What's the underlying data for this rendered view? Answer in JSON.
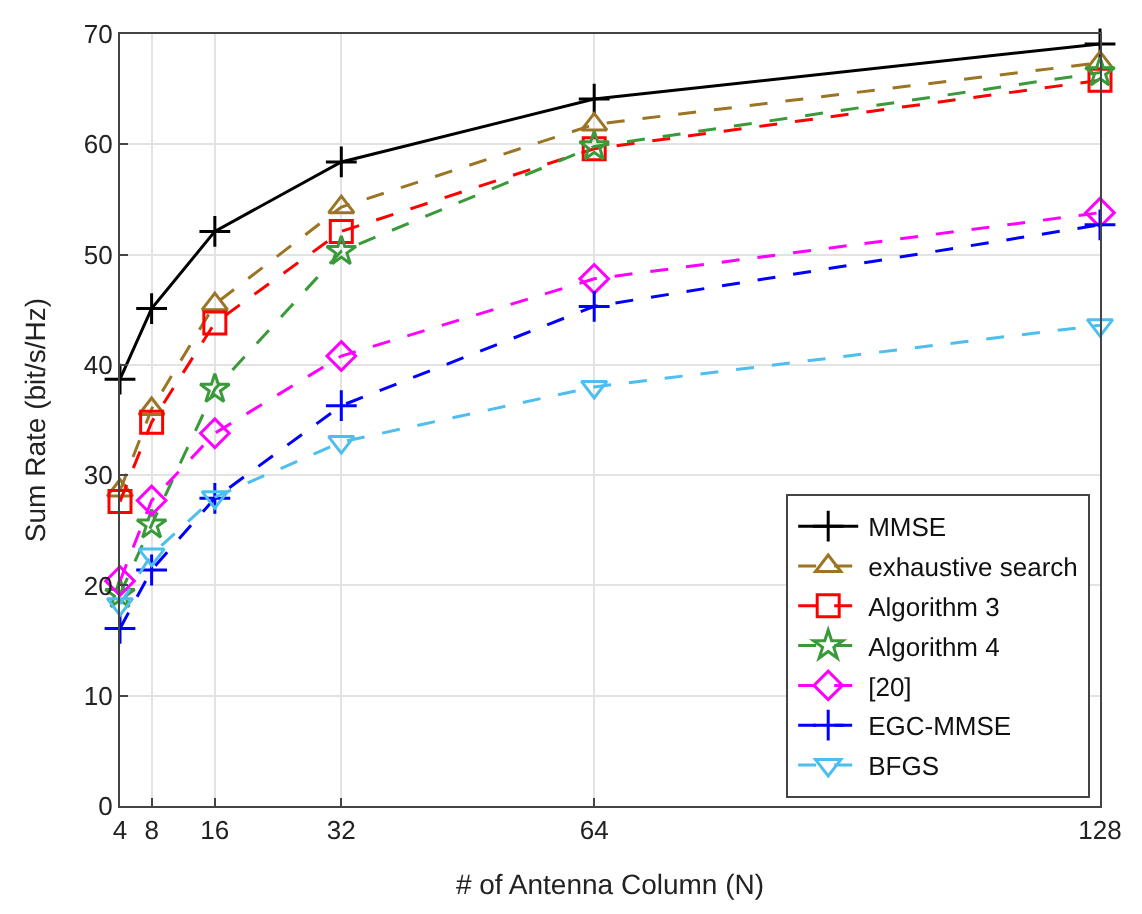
{
  "chart_data": {
    "type": "line",
    "xlabel": "# of Antenna Column (N)",
    "ylabel": "Sum Rate (bit/s/Hz)",
    "x": [
      4,
      8,
      16,
      32,
      64,
      128
    ],
    "xlim": [
      4,
      128
    ],
    "xticks": [
      4,
      8,
      16,
      32,
      64,
      128
    ],
    "ylim": [
      0,
      70
    ],
    "yticks": [
      0,
      10,
      20,
      30,
      40,
      50,
      60,
      70
    ],
    "grid": true,
    "legend": "bottom right",
    "series": [
      {
        "name": "MMSE",
        "color": "#000000",
        "marker": "cross",
        "line_style": "solid",
        "values": [
          38.7,
          45.1,
          52.1,
          58.4,
          64.1,
          69.1
        ]
      },
      {
        "name": "exhaustive search",
        "color": "#9b7424",
        "marker": "triangle",
        "line_style": "dashed",
        "values": [
          28.6,
          36.0,
          45.5,
          54.3,
          61.8,
          67.4
        ]
      },
      {
        "name": "Algorithm 3",
        "color": "#ff0000",
        "marker": "square",
        "line_style": "dashed",
        "values": [
          27.6,
          34.8,
          43.8,
          52.1,
          59.6,
          65.8
        ]
      },
      {
        "name": "Algorithm 4",
        "color": "#3a9a3a",
        "marker": "star",
        "line_style": "dashed",
        "values": [
          19.2,
          25.5,
          37.8,
          50.3,
          59.8,
          66.5
        ]
      },
      {
        "name": "[20]",
        "color": "#ff00ff",
        "marker": "diamond",
        "line_style": "dashed",
        "values": [
          20.4,
          27.7,
          33.8,
          40.8,
          47.8,
          53.8
        ]
      },
      {
        "name": "EGC-MMSE",
        "color": "#0000ff",
        "marker": "cross",
        "line_style": "dashed",
        "values": [
          16.1,
          21.4,
          27.9,
          36.3,
          45.3,
          52.7
        ]
      },
      {
        "name": "BFGS",
        "color": "#4dbeee",
        "marker": "triangle-down",
        "line_style": "dashed",
        "values": [
          18.3,
          22.8,
          28.0,
          33.0,
          38.0,
          43.6
        ]
      }
    ]
  }
}
